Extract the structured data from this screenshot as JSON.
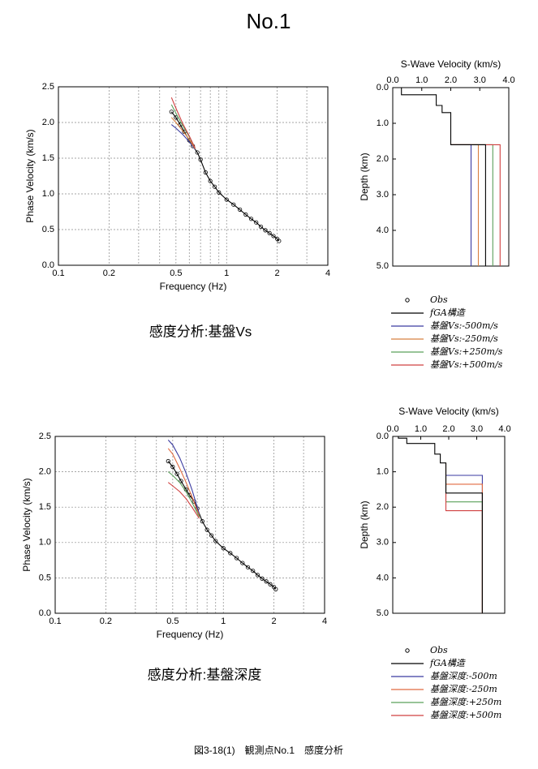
{
  "page_title": "No.1",
  "figure_caption": "図3-18(1)　観測点No.1　感度分析",
  "chart_data": [
    {
      "type": "line",
      "caption": "感度分析:基盤Vs",
      "xlabel": "Frequency (Hz)",
      "ylabel": "Phase Velocity (km/s)",
      "xscale": "log",
      "xlim": [
        0.1,
        4
      ],
      "xticks": [
        0.1,
        0.2,
        0.5,
        1,
        2,
        4
      ],
      "xminor": [
        0.3,
        0.4,
        0.6,
        0.7,
        0.8,
        0.9,
        3
      ],
      "ylim": [
        0,
        2.5
      ],
      "yticks": [
        {
          "value": 0,
          "label": "0.0"
        },
        0.5,
        {
          "value": 1,
          "label": "1.0"
        },
        1.5,
        {
          "value": 2,
          "label": "2.0"
        },
        2.5
      ],
      "grid": true,
      "series": [
        {
          "name": "Obs",
          "color": "#000000",
          "marker": "circle",
          "x": [
            0.47,
            0.5,
            0.53,
            0.56,
            0.6,
            0.63,
            0.67,
            0.7,
            0.75,
            0.8,
            0.85,
            0.9,
            1.0,
            1.1,
            1.2,
            1.3,
            1.4,
            1.5,
            1.6,
            1.7,
            1.8,
            1.9,
            2.0,
            2.05
          ],
          "values": [
            2.15,
            2.07,
            1.97,
            1.87,
            1.75,
            1.67,
            1.58,
            1.48,
            1.3,
            1.18,
            1.1,
            1.02,
            0.92,
            0.85,
            0.78,
            0.71,
            0.65,
            0.6,
            0.54,
            0.49,
            0.45,
            0.41,
            0.37,
            0.34
          ]
        },
        {
          "name": "fGA構造",
          "color": "#000000",
          "x": [
            0.47,
            0.5,
            0.53,
            0.56,
            0.6,
            0.63,
            0.67,
            0.7,
            0.75,
            0.8,
            0.85,
            0.9,
            1.0,
            1.1,
            1.2,
            1.3,
            1.4,
            1.5,
            1.6,
            1.7,
            1.8,
            1.9,
            2.0,
            2.05
          ],
          "values": [
            2.15,
            2.07,
            1.97,
            1.87,
            1.75,
            1.67,
            1.58,
            1.48,
            1.3,
            1.18,
            1.1,
            1.02,
            0.92,
            0.85,
            0.78,
            0.71,
            0.65,
            0.6,
            0.54,
            0.49,
            0.45,
            0.41,
            0.37,
            0.34
          ]
        },
        {
          "name": "基盤Vs:-500m/s",
          "color": "#3a3aa0",
          "x": [
            0.47,
            0.5,
            0.55,
            0.6,
            0.65
          ],
          "values": [
            1.97,
            1.92,
            1.83,
            1.73,
            1.62
          ]
        },
        {
          "name": "基盤Vs:-250m/s",
          "color": "#d88040",
          "x": [
            0.47,
            0.5,
            0.55,
            0.6,
            0.65
          ],
          "values": [
            2.07,
            2.0,
            1.88,
            1.76,
            1.63
          ]
        },
        {
          "name": "基盤Vs:+250m/s",
          "color": "#5aa05a",
          "x": [
            0.47,
            0.5,
            0.55,
            0.6,
            0.65
          ],
          "values": [
            2.25,
            2.13,
            1.95,
            1.8,
            1.64
          ]
        },
        {
          "name": "基盤Vs:+500m/s",
          "color": "#d04040",
          "x": [
            0.47,
            0.5,
            0.55,
            0.6,
            0.65
          ],
          "values": [
            2.35,
            2.2,
            1.98,
            1.81,
            1.64
          ]
        }
      ]
    },
    {
      "type": "line",
      "title": "S-Wave Velocity (km/s)",
      "ylabel": "Depth (km)",
      "xaxis_position": "top",
      "y_inverted": true,
      "xlim": [
        0,
        4
      ],
      "xticks": [
        {
          "value": 0,
          "label": "0.0"
        },
        {
          "value": 1,
          "label": "1.0"
        },
        {
          "value": 2,
          "label": "2.0"
        },
        {
          "value": 3,
          "label": "3.0"
        },
        {
          "value": 4,
          "label": "4.0"
        }
      ],
      "ylim": [
        0,
        5
      ],
      "yticks": [
        {
          "value": 0,
          "label": "0.0"
        },
        {
          "value": 1,
          "label": "1.0"
        },
        {
          "value": 2,
          "label": "2.0"
        },
        {
          "value": 3,
          "label": "3.0"
        },
        {
          "value": 4,
          "label": "4.0"
        },
        {
          "value": 5,
          "label": "5.0"
        }
      ],
      "series": [
        {
          "color": "#3a3aa0",
          "x": [
            2.0,
            2.7,
            2.7
          ],
          "values": [
            1.6,
            1.6,
            5.0
          ]
        },
        {
          "color": "#d88040",
          "x": [
            2.0,
            2.95,
            2.95
          ],
          "values": [
            1.6,
            1.6,
            5.0
          ]
        },
        {
          "color": "#5aa05a",
          "x": [
            2.0,
            3.45,
            3.45
          ],
          "values": [
            1.6,
            1.6,
            5.0
          ]
        },
        {
          "color": "#d04040",
          "x": [
            2.0,
            3.7,
            3.7
          ],
          "values": [
            1.6,
            1.6,
            5.0
          ]
        },
        {
          "color": "#000000",
          "x": [
            0.3,
            0.3,
            1.5,
            1.5,
            1.7,
            1.7,
            2.0,
            2.0,
            3.2,
            3.2
          ],
          "values": [
            0,
            0.2,
            0.2,
            0.5,
            0.5,
            0.7,
            0.7,
            1.6,
            1.6,
            5.0
          ]
        }
      ]
    },
    {
      "type": "line",
      "caption": "感度分析:基盤深度",
      "xlabel": "Frequency (Hz)",
      "ylabel": "Phase Velocity (km/s)",
      "xscale": "log",
      "xlim": [
        0.1,
        4
      ],
      "xticks": [
        0.1,
        0.2,
        0.5,
        1,
        2,
        4
      ],
      "xminor": [
        0.3,
        0.4,
        0.6,
        0.7,
        0.8,
        0.9,
        3
      ],
      "ylim": [
        0,
        2.5
      ],
      "yticks": [
        {
          "value": 0,
          "label": "0.0"
        },
        0.5,
        {
          "value": 1,
          "label": "1.0"
        },
        1.5,
        {
          "value": 2,
          "label": "2.0"
        },
        2.5
      ],
      "grid": true,
      "series": [
        {
          "name": "Obs",
          "color": "#000000",
          "marker": "circle",
          "x": [
            0.47,
            0.5,
            0.53,
            0.56,
            0.6,
            0.63,
            0.67,
            0.7,
            0.75,
            0.8,
            0.85,
            0.9,
            1.0,
            1.1,
            1.2,
            1.3,
            1.4,
            1.5,
            1.6,
            1.7,
            1.8,
            1.9,
            2.0,
            2.05
          ],
          "values": [
            2.15,
            2.07,
            1.97,
            1.87,
            1.75,
            1.67,
            1.58,
            1.48,
            1.3,
            1.18,
            1.1,
            1.02,
            0.92,
            0.85,
            0.78,
            0.71,
            0.65,
            0.6,
            0.54,
            0.49,
            0.45,
            0.41,
            0.37,
            0.34
          ]
        },
        {
          "name": "fGA構造",
          "color": "#000000",
          "x": [
            0.47,
            0.5,
            0.53,
            0.56,
            0.6,
            0.63,
            0.67,
            0.7,
            0.75,
            0.8,
            0.85,
            0.9,
            1.0,
            1.1,
            1.2,
            1.3,
            1.4,
            1.5,
            1.6,
            1.7,
            1.8,
            1.9,
            2.0,
            2.05
          ],
          "values": [
            2.15,
            2.07,
            1.97,
            1.87,
            1.75,
            1.67,
            1.58,
            1.48,
            1.3,
            1.18,
            1.1,
            1.02,
            0.92,
            0.85,
            0.78,
            0.71,
            0.65,
            0.6,
            0.54,
            0.49,
            0.45,
            0.41,
            0.37,
            0.34
          ]
        },
        {
          "name": "基盤深度:-500m",
          "color": "#3a3aa0",
          "x": [
            0.47,
            0.5,
            0.55,
            0.6,
            0.65,
            0.72
          ],
          "values": [
            2.45,
            2.38,
            2.2,
            1.98,
            1.75,
            1.4
          ]
        },
        {
          "name": "基盤深度:-250m",
          "color": "#e06a40",
          "x": [
            0.47,
            0.5,
            0.55,
            0.6,
            0.65,
            0.72
          ],
          "values": [
            2.33,
            2.25,
            2.05,
            1.85,
            1.65,
            1.38
          ]
        },
        {
          "name": "基盤深度:+250m",
          "color": "#5aa05a",
          "x": [
            0.47,
            0.5,
            0.55,
            0.6,
            0.65,
            0.72
          ],
          "values": [
            2.0,
            1.95,
            1.85,
            1.72,
            1.57,
            1.36
          ]
        },
        {
          "name": "基盤深度:+500m",
          "color": "#d04040",
          "x": [
            0.47,
            0.5,
            0.55,
            0.6,
            0.65,
            0.72
          ],
          "values": [
            1.85,
            1.8,
            1.72,
            1.62,
            1.5,
            1.34
          ]
        }
      ]
    },
    {
      "type": "line",
      "title": "S-Wave Velocity (km/s)",
      "ylabel": "Depth (km)",
      "xaxis_position": "top",
      "y_inverted": true,
      "xlim": [
        0,
        4
      ],
      "xticks": [
        {
          "value": 0,
          "label": "0.0"
        },
        {
          "value": 1,
          "label": "1.0"
        },
        {
          "value": 2,
          "label": "2.0"
        },
        {
          "value": 3,
          "label": "3.0"
        },
        {
          "value": 4,
          "label": "4.0"
        }
      ],
      "ylim": [
        0,
        5
      ],
      "yticks": [
        {
          "value": 0,
          "label": "0.0"
        },
        {
          "value": 1,
          "label": "1.0"
        },
        {
          "value": 2,
          "label": "2.0"
        },
        {
          "value": 3,
          "label": "3.0"
        },
        {
          "value": 4,
          "label": "4.0"
        },
        {
          "value": 5,
          "label": "5.0"
        }
      ],
      "series": [
        {
          "color": "#3a3aa0",
          "x": [
            1.9,
            3.2,
            3.2
          ],
          "values": [
            1.1,
            1.1,
            5.0
          ]
        },
        {
          "color": "#e06a40",
          "x": [
            1.9,
            3.2,
            3.2
          ],
          "values": [
            1.35,
            1.35,
            5.0
          ]
        },
        {
          "color": "#5aa05a",
          "x": [
            1.9,
            1.9,
            3.2,
            3.2
          ],
          "values": [
            0.75,
            1.85,
            1.85,
            5.0
          ]
        },
        {
          "color": "#d04040",
          "x": [
            1.9,
            1.9,
            3.2,
            3.2
          ],
          "values": [
            0.75,
            2.1,
            2.1,
            5.0
          ]
        },
        {
          "color": "#000000",
          "x": [
            0.2,
            0.2,
            0.5,
            0.5,
            1.5,
            1.5,
            1.7,
            1.7,
            1.9,
            1.9,
            3.2,
            3.2
          ],
          "values": [
            0,
            0.05,
            0.05,
            0.2,
            0.2,
            0.5,
            0.5,
            0.75,
            0.75,
            1.6,
            1.6,
            5.0
          ]
        }
      ]
    }
  ]
}
